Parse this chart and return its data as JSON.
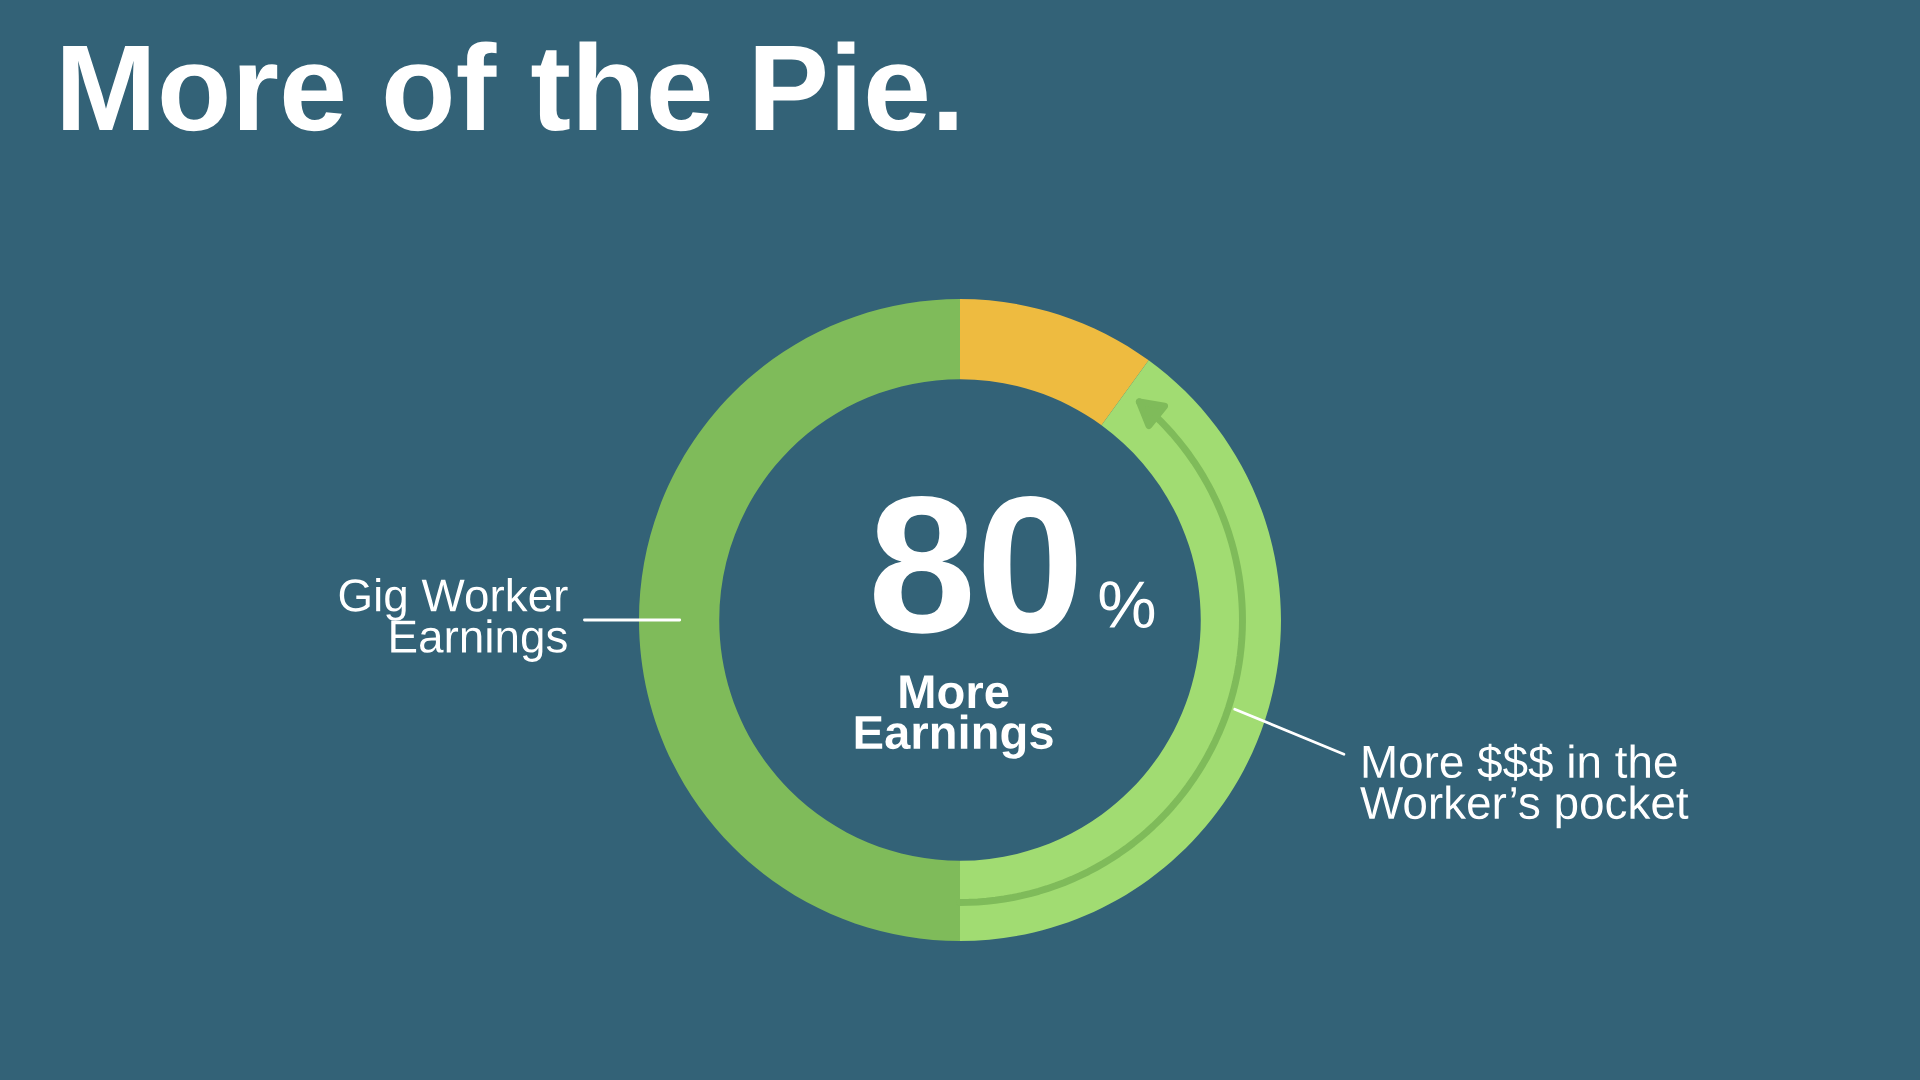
{
  "chart_data": {
    "type": "donut",
    "title": "More of the Pie.",
    "categories": [
      null,
      "More $$$ in the\nWorker’s pocket",
      "Gig Worker\nEarnings"
    ],
    "values": [
      10,
      40,
      50
    ],
    "colors": [
      "#eebb40",
      "#a1dc72",
      "#7fbb5a"
    ],
    "annotations": [
      "80",
      "%",
      "More\nEarnings"
    ],
    "legend": false
  }
}
